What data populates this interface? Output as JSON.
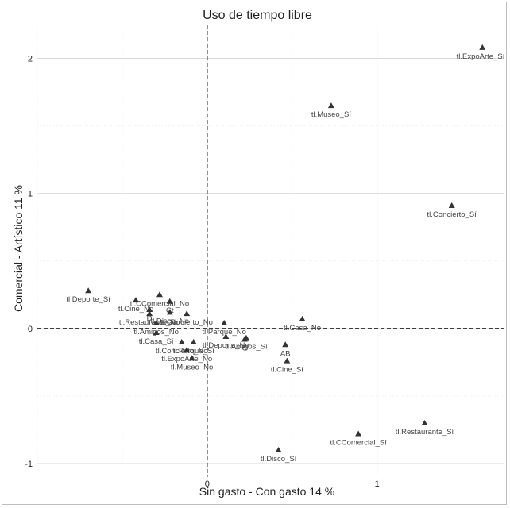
{
  "chart_data": {
    "type": "scatter",
    "title": "Uso de tiempo libre",
    "xlabel": "Sin gasto - Con gasto 14 %",
    "ylabel": "Comercial - Artístico 11 %",
    "xlim": [
      -1.0,
      1.75
    ],
    "ylim": [
      -1.1,
      2.25
    ],
    "x_ticks": [
      0,
      1
    ],
    "y_ticks": [
      -1,
      0,
      1,
      2
    ],
    "grid": true,
    "reference_lines": {
      "x": 0,
      "y": 0,
      "style": "dashed"
    },
    "marker": "triangle",
    "marker_color": "#333333",
    "points": [
      {
        "label": "tl.ExpoArte_Sí",
        "x": 1.62,
        "y": 2.08
      },
      {
        "label": "tl.Museo_Sí",
        "x": 0.73,
        "y": 1.65
      },
      {
        "label": "tl.Concierto_Sí",
        "x": 1.44,
        "y": 0.91
      },
      {
        "label": "tl.Deporte_Sí",
        "x": -0.7,
        "y": 0.28
      },
      {
        "label": "tl.CComercial_No",
        "x": -0.28,
        "y": 0.25
      },
      {
        "label": "tl.Cine_No",
        "x": -0.42,
        "y": 0.21
      },
      {
        "label": "Ct",
        "x": -0.22,
        "y": 0.2
      },
      {
        "label": "D",
        "x": -0.34,
        "y": 0.14
      },
      {
        "label": "tl.Restaurante_No",
        "x": -0.34,
        "y": 0.11
      },
      {
        "label": "tl.Disco_No",
        "x": -0.22,
        "y": 0.12
      },
      {
        "label": "tl.Concierto_No",
        "x": -0.12,
        "y": 0.11
      },
      {
        "label": "tl.Amigos_No",
        "x": -0.3,
        "y": 0.04
      },
      {
        "label": "tl.Parque_No",
        "x": 0.1,
        "y": 0.04
      },
      {
        "label": "tl.Casa_No",
        "x": 0.56,
        "y": 0.07
      },
      {
        "label": "tl.Casa_Sí",
        "x": -0.3,
        "y": -0.03
      },
      {
        "label": "tl.Deporte_No",
        "x": 0.11,
        "y": -0.06
      },
      {
        "label": "C",
        "x": 0.22,
        "y": -0.08
      },
      {
        "label": "tl.Amigos_Sí",
        "x": 0.23,
        "y": -0.07
      },
      {
        "label": "tl.Concierto_No",
        "x": -0.15,
        "y": -0.1
      },
      {
        "label": "tl.Parque_Sí",
        "x": -0.08,
        "y": -0.1
      },
      {
        "label": "tl.ExpoArte_No",
        "x": -0.12,
        "y": -0.16
      },
      {
        "label": "tl.Museo_No",
        "x": -0.09,
        "y": -0.22
      },
      {
        "label": "AB",
        "x": 0.46,
        "y": -0.12
      },
      {
        "label": "tl.Cine_Sí",
        "x": 0.47,
        "y": -0.24
      },
      {
        "label": "tl.Restaurante_Sí",
        "x": 1.28,
        "y": -0.7
      },
      {
        "label": "tl.CComercial_Sí",
        "x": 0.89,
        "y": -0.78
      },
      {
        "label": "tl.Disco_Sí",
        "x": 0.42,
        "y": -0.9
      }
    ]
  }
}
